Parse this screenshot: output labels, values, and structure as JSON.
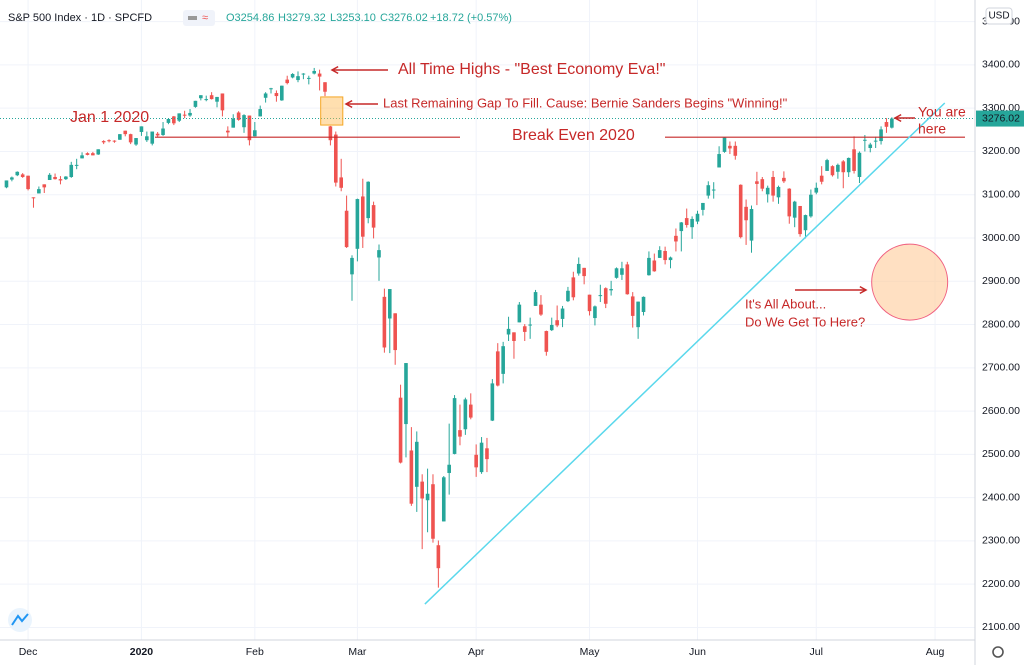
{
  "chart_data": {
    "type": "candlestick",
    "header": {
      "symbol": "S&P 500 Index · 1D · SPCFD",
      "open": "O3254.86",
      "high": "H3279.32",
      "low": "L3253.10",
      "close": "C3276.02",
      "change": "+18.72 (+0.57%)"
    },
    "currency": "USD",
    "up_color": "#26a69a",
    "down_color": "#ef5350",
    "xlim": [
      -1.2,
      179.4
    ],
    "xticks": [
      {
        "value": 4,
        "label": "Dec"
      },
      {
        "value": 25,
        "label": "2020"
      },
      {
        "value": 46,
        "label": "Feb"
      },
      {
        "value": 65,
        "label": "Mar"
      },
      {
        "value": 87,
        "label": "Apr"
      },
      {
        "value": 108,
        "label": "May"
      },
      {
        "value": 128,
        "label": "Jun"
      },
      {
        "value": 150,
        "label": "Jul"
      },
      {
        "value": 172,
        "label": "Aug"
      }
    ],
    "ylim": [
      2071,
      3550
    ],
    "yticks": [
      {
        "value": 2100,
        "label": "2100.00"
      },
      {
        "value": 2200,
        "label": "2200.00"
      },
      {
        "value": 2300,
        "label": "2300.00"
      },
      {
        "value": 2400,
        "label": "2400.00"
      },
      {
        "value": 2500,
        "label": "2500.00"
      },
      {
        "value": 2600,
        "label": "2600.00"
      },
      {
        "value": 2700,
        "label": "2700.00"
      },
      {
        "value": 2800,
        "label": "2800.00"
      },
      {
        "value": 2900,
        "label": "2900.00"
      },
      {
        "value": 3000,
        "label": "3000.00"
      },
      {
        "value": 3100,
        "label": "3100.00"
      },
      {
        "value": 3200,
        "label": "3200.00"
      },
      {
        "value": 3300,
        "label": "3300.00"
      },
      {
        "value": 3400,
        "label": "3400.00"
      },
      {
        "value": 3500,
        "label": "3500.00"
      }
    ],
    "grid": true,
    "last_price": 3276.02,
    "ohlc": [
      [
        3117,
        3133,
        3115,
        3133
      ],
      [
        3135,
        3142,
        3131,
        3140
      ],
      [
        3145,
        3154,
        3143,
        3153
      ],
      [
        3147,
        3150,
        3139,
        3141
      ],
      [
        3144,
        3144,
        3110,
        3113
      ],
      [
        3094,
        3094,
        3070,
        3093
      ],
      [
        3103,
        3119,
        3103,
        3113
      ],
      [
        3124,
        3124,
        3104,
        3117
      ],
      [
        3134,
        3150,
        3134,
        3146
      ],
      [
        3141,
        3149,
        3135,
        3136
      ],
      [
        3136,
        3143,
        3124,
        3133
      ],
      [
        3136,
        3143,
        3134,
        3142
      ],
      [
        3141,
        3176,
        3139,
        3169
      ],
      [
        3167,
        3183,
        3159,
        3169
      ],
      [
        3184,
        3198,
        3184,
        3191
      ],
      [
        3196,
        3198,
        3191,
        3192
      ],
      [
        3196,
        3199,
        3191,
        3191
      ],
      [
        3193,
        3205,
        3192,
        3205
      ],
      [
        3224,
        3226,
        3217,
        3221
      ],
      [
        3226,
        3228,
        3221,
        3224
      ],
      [
        3225,
        3226,
        3220,
        3223
      ],
      [
        3227,
        3240,
        3227,
        3240
      ],
      [
        3248,
        3248,
        3235,
        3240
      ],
      [
        3240,
        3241,
        3217,
        3221
      ],
      [
        3216,
        3231,
        3213,
        3231
      ],
      [
        3245,
        3258,
        3236,
        3258
      ],
      [
        3226,
        3246,
        3222,
        3235
      ],
      [
        3218,
        3246,
        3214,
        3246
      ],
      [
        3241,
        3245,
        3233,
        3237
      ],
      [
        3238,
        3268,
        3236,
        3253
      ],
      [
        3266,
        3276,
        3263,
        3275
      ],
      [
        3281,
        3282,
        3261,
        3265
      ],
      [
        3271,
        3288,
        3268,
        3288
      ],
      [
        3285,
        3294,
        3277,
        3283
      ],
      [
        3283,
        3298,
        3280,
        3289
      ],
      [
        3303,
        3317,
        3301,
        3317
      ],
      [
        3323,
        3330,
        3318,
        3330
      ],
      [
        3321,
        3329,
        3316,
        3321
      ],
      [
        3330,
        3337,
        3320,
        3321
      ],
      [
        3315,
        3326,
        3302,
        3326
      ],
      [
        3334,
        3334,
        3281,
        3295
      ],
      [
        3248,
        3258,
        3234,
        3244
      ],
      [
        3255,
        3286,
        3255,
        3276
      ],
      [
        3290,
        3293,
        3271,
        3273
      ],
      [
        3256,
        3286,
        3243,
        3284
      ],
      [
        3283,
        3283,
        3214,
        3226
      ],
      [
        3235,
        3268,
        3235,
        3249
      ],
      [
        3281,
        3306,
        3281,
        3298
      ],
      [
        3324,
        3337,
        3313,
        3334
      ],
      [
        3344,
        3347,
        3334,
        3346
      ],
      [
        3335,
        3341,
        3315,
        3328
      ],
      [
        3318,
        3352,
        3317,
        3352
      ],
      [
        3366,
        3375,
        3355,
        3358
      ],
      [
        3371,
        3381,
        3369,
        3379
      ],
      [
        3365,
        3385,
        3360,
        3374
      ],
      [
        3378,
        3381,
        3367,
        3380
      ],
      [
        3370,
        3375,
        3355,
        3370
      ],
      [
        3380,
        3393,
        3378,
        3386
      ],
      [
        3380,
        3389,
        3341,
        3373
      ],
      [
        3360,
        3360,
        3328,
        3338
      ],
      [
        3258,
        3259,
        3214,
        3226
      ],
      [
        3239,
        3246,
        3119,
        3128
      ],
      [
        3140,
        3183,
        3108,
        3116
      ],
      [
        3063,
        3098,
        2977,
        2979
      ],
      [
        2916,
        2960,
        2855,
        2954
      ],
      [
        2975,
        3091,
        2946,
        3090
      ],
      [
        3096,
        3137,
        2977,
        3003
      ],
      [
        3046,
        3131,
        3034,
        3130
      ],
      [
        3076,
        3084,
        2999,
        3024
      ],
      [
        2955,
        2985,
        2901,
        2972
      ],
      [
        2864,
        2883,
        2735,
        2747
      ],
      [
        2814,
        2882,
        2734,
        2882
      ],
      [
        2826,
        2826,
        2707,
        2741
      ],
      [
        2631,
        2661,
        2479,
        2481
      ],
      [
        2570,
        2711,
        2493,
        2711
      ],
      [
        2509,
        2563,
        2381,
        2386
      ],
      [
        2425,
        2553,
        2367,
        2529
      ],
      [
        2437,
        2454,
        2281,
        2398
      ],
      [
        2394,
        2467,
        2320,
        2409
      ],
      [
        2431,
        2454,
        2296,
        2305
      ],
      [
        2290,
        2301,
        2192,
        2237
      ],
      [
        2345,
        2450,
        2345,
        2447
      ],
      [
        2457,
        2571,
        2407,
        2476
      ],
      [
        2501,
        2637,
        2500,
        2630
      ],
      [
        2556,
        2615,
        2521,
        2541
      ],
      [
        2558,
        2631,
        2545,
        2627
      ],
      [
        2615,
        2641,
        2581,
        2585
      ],
      [
        2499,
        2523,
        2448,
        2470
      ],
      [
        2459,
        2540,
        2455,
        2527
      ],
      [
        2514,
        2538,
        2459,
        2489
      ],
      [
        2578,
        2674,
        2577,
        2664
      ],
      [
        2738,
        2757,
        2657,
        2659
      ],
      [
        2686,
        2760,
        2664,
        2750
      ],
      [
        2777,
        2818,
        2762,
        2790
      ],
      [
        2782,
        2782,
        2721,
        2762
      ],
      [
        2805,
        2852,
        2805,
        2846
      ],
      [
        2796,
        2801,
        2762,
        2783
      ],
      [
        2800,
        2816,
        2767,
        2800
      ],
      [
        2843,
        2880,
        2843,
        2875
      ],
      [
        2846,
        2868,
        2820,
        2823
      ],
      [
        2785,
        2786,
        2728,
        2737
      ],
      [
        2787,
        2816,
        2785,
        2799
      ],
      [
        2810,
        2844,
        2794,
        2798
      ],
      [
        2813,
        2843,
        2794,
        2837
      ],
      [
        2854,
        2887,
        2852,
        2878
      ],
      [
        2909,
        2922,
        2856,
        2863
      ],
      [
        2918,
        2955,
        2913,
        2940
      ],
      [
        2931,
        2931,
        2893,
        2912
      ],
      [
        2869,
        2869,
        2821,
        2831
      ],
      [
        2815,
        2844,
        2798,
        2842
      ],
      [
        2868,
        2892,
        2852,
        2868
      ],
      [
        2884,
        2886,
        2838,
        2848
      ],
      [
        2879,
        2901,
        2867,
        2882
      ],
      [
        2908,
        2932,
        2906,
        2930
      ],
      [
        2915,
        2945,
        2903,
        2930
      ],
      [
        2939,
        2945,
        2869,
        2870
      ],
      [
        2865,
        2875,
        2793,
        2820
      ],
      [
        2794,
        2853,
        2767,
        2853
      ],
      [
        2829,
        2865,
        2821,
        2864
      ],
      [
        2914,
        2969,
        2913,
        2954
      ],
      [
        2948,
        2964,
        2922,
        2923
      ],
      [
        2954,
        2981,
        2954,
        2972
      ],
      [
        2970,
        2980,
        2939,
        2949
      ],
      [
        2949,
        2957,
        2930,
        2955
      ],
      [
        3005,
        3022,
        2969,
        2992
      ],
      [
        3016,
        3037,
        2969,
        3036
      ],
      [
        3046,
        3068,
        3024,
        3030
      ],
      [
        3025,
        3050,
        2998,
        3044
      ],
      [
        3038,
        3063,
        3032,
        3056
      ],
      [
        3065,
        3081,
        3052,
        3081
      ],
      [
        3098,
        3131,
        3091,
        3122
      ],
      [
        3112,
        3129,
        3091,
        3112
      ],
      [
        3163,
        3212,
        3163,
        3194
      ],
      [
        3199,
        3232,
        3197,
        3232
      ],
      [
        3213,
        3223,
        3194,
        3207
      ],
      [
        3213,
        3223,
        3181,
        3190
      ],
      [
        3123,
        3124,
        2999,
        3002
      ],
      [
        3072,
        3089,
        2984,
        3041
      ],
      [
        2994,
        3075,
        2966,
        3067
      ],
      [
        3131,
        3153,
        3076,
        3125
      ],
      [
        3136,
        3141,
        3108,
        3114
      ],
      [
        3101,
        3121,
        3082,
        3116
      ],
      [
        3141,
        3155,
        3084,
        3098
      ],
      [
        3094,
        3121,
        3079,
        3118
      ],
      [
        3139,
        3154,
        3127,
        3131
      ],
      [
        3114,
        3115,
        3033,
        3050
      ],
      [
        3047,
        3086,
        3025,
        3084
      ],
      [
        3074,
        3074,
        3003,
        3009
      ],
      [
        3018,
        3054,
        2999,
        3053
      ],
      [
        3050,
        3112,
        3047,
        3100
      ],
      [
        3105,
        3128,
        3101,
        3116
      ],
      [
        3144,
        3166,
        3124,
        3130
      ],
      [
        3155,
        3183,
        3155,
        3180
      ],
      [
        3166,
        3168,
        3142,
        3145
      ],
      [
        3153,
        3172,
        3137,
        3169
      ],
      [
        3177,
        3180,
        3115,
        3152
      ],
      [
        3152,
        3186,
        3141,
        3185
      ],
      [
        3205,
        3235,
        3149,
        3155
      ],
      [
        3141,
        3200,
        3127,
        3197
      ],
      [
        3226,
        3238,
        3200,
        3227
      ],
      [
        3208,
        3220,
        3198,
        3216
      ],
      [
        3224,
        3234,
        3208,
        3225
      ],
      [
        3224,
        3258,
        3216,
        3251
      ],
      [
        3268,
        3277,
        3243,
        3257
      ],
      [
        3255,
        3279,
        3253,
        3276
      ]
    ],
    "annotation_color": "#c62828",
    "break_even_level": 3233,
    "trendline": {
      "x": [
        77.5,
        173.8
      ],
      "y": [
        2154,
        3312
      ],
      "color": "#5ad8ec"
    },
    "gap": {
      "x": [
        58.2,
        62.3
      ],
      "y": [
        3261,
        3326
      ]
    },
    "target": {
      "x": 167.3,
      "y": 2898
    },
    "annotations": {
      "all_time_highs": "All Time Highs - \"Best Economy Eva!\"",
      "gap_note": "Last Remaining Gap To Fill. Cause: Bernie Sanders Begins \"Winning!\"",
      "jan_1": "Jan 1 2020",
      "break_even": "Break Even 2020",
      "you_are_here": [
        "You are",
        "here"
      ],
      "question": [
        "It's All About...",
        "Do We Get To Here?"
      ]
    }
  }
}
